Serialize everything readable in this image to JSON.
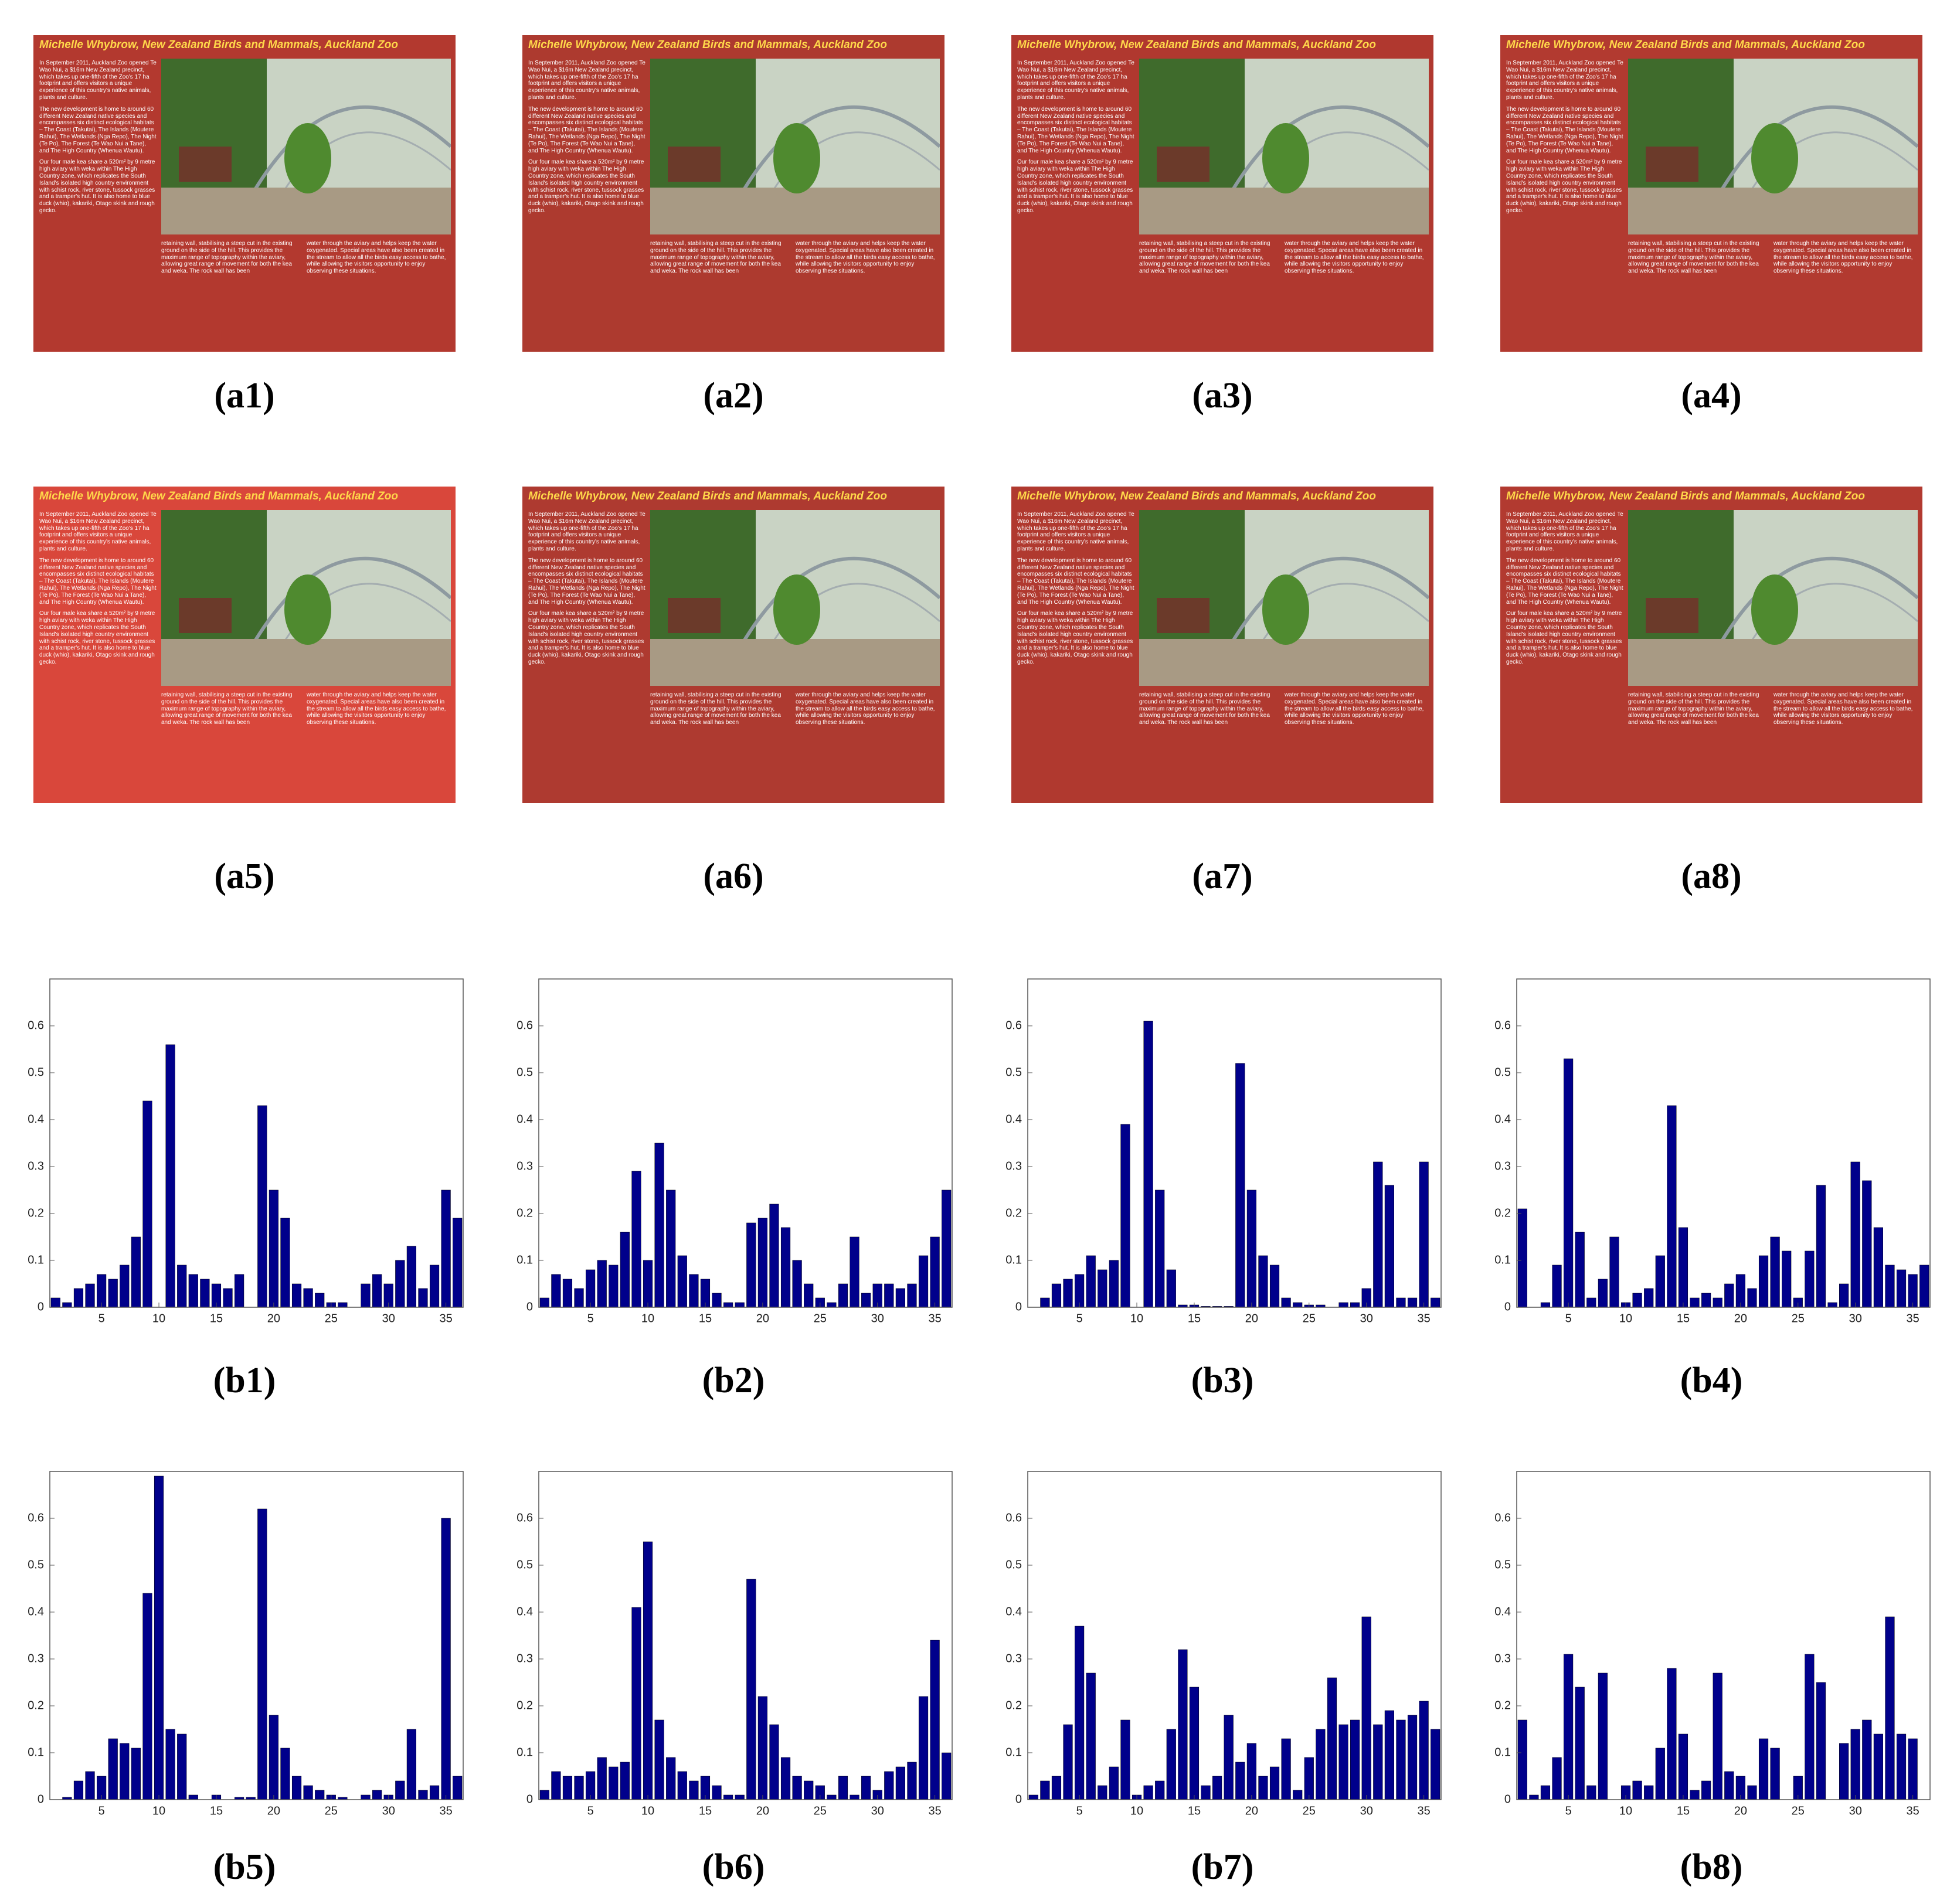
{
  "posters": {
    "title": "Michelle Whybrow, New Zealand Birds and Mammals, Auckland Zoo",
    "paragraphs": [
      "In September 2011, Auckland Zoo opened Te Wao Nui, a $16m New Zealand precinct, which takes up one-fifth of the Zoo's 17 ha footprint and offers visitors a unique experience of this country's native animals, plants and culture.",
      "The new development is home to around 60 different New Zealand native species and encompasses six distinct ecological habitats – The Coast (Takutai), The Islands (Moutere Rahui), The Wetlands (Nga Repo), The Night (Te Po), The Forest (Te Wao Nui a Tane), and The High Country (Whenua Wautu).",
      "Our four male kea share a 520m² by 9 metre high aviary with weka within The High Country zone, which replicates the South Island's isolated high country environment with schist rock, river stone, tussock grasses and a tramper's hut. It is also home to blue duck (whio), kakariki, Otago skink and rough gecko.",
      "retaining wall, stabilising a steep cut in the existing ground on the side of the hill. This provides the maximum range of topography within the aviary, allowing great range of movement for both the kea and weka. The rock wall has been",
      "water through the aviary and helps keep the water oxygenated. Special areas have also been created in the stream to allow all the birds easy access to bathe, while allowing the visitors opportunity to enjoy observing these situations."
    ],
    "panels": [
      {
        "caption": "(a1)",
        "color": "#b3392f"
      },
      {
        "caption": "(a2)",
        "color": "#ad3a2f"
      },
      {
        "caption": "(a3)",
        "color": "#b0382f"
      },
      {
        "caption": "(a4)",
        "color": "#b23a30"
      },
      {
        "caption": "(a5)",
        "color": "#d9473b"
      },
      {
        "caption": "(a6)",
        "color": "#ae3a30"
      },
      {
        "caption": "(a7)",
        "color": "#b0392f"
      },
      {
        "caption": "(a8)",
        "color": "#b23a30"
      }
    ]
  },
  "chart_data": [
    {
      "type": "bar",
      "caption": "(b1)",
      "color": "#00008b",
      "x": [
        1,
        2,
        3,
        4,
        5,
        6,
        7,
        8,
        9,
        10,
        11,
        12,
        13,
        14,
        15,
        16,
        17,
        18,
        19,
        20,
        21,
        22,
        23,
        24,
        25,
        26,
        27,
        28,
        29,
        30,
        31,
        32,
        33,
        34,
        35,
        36
      ],
      "values": [
        0.02,
        0.01,
        0.04,
        0.05,
        0.07,
        0.06,
        0.09,
        0.15,
        0.44,
        0,
        0.56,
        0.09,
        0.07,
        0.06,
        0.05,
        0.04,
        0.07,
        0,
        0.43,
        0.25,
        0.19,
        0.05,
        0.04,
        0.03,
        0.01,
        0.01,
        0,
        0.05,
        0.07,
        0.05,
        0.1,
        0.13,
        0.04,
        0.09,
        0.25,
        0.19
      ],
      "xlim": [
        0.5,
        36.5
      ],
      "ylim": [
        0,
        0.7
      ],
      "xticks": [
        5,
        10,
        15,
        20,
        25,
        30,
        35
      ],
      "yticks": [
        0,
        0.1,
        0.2,
        0.3,
        0.4,
        0.5,
        0.6
      ]
    },
    {
      "type": "bar",
      "caption": "(b2)",
      "color": "#00008b",
      "x": [
        1,
        2,
        3,
        4,
        5,
        6,
        7,
        8,
        9,
        10,
        11,
        12,
        13,
        14,
        15,
        16,
        17,
        18,
        19,
        20,
        21,
        22,
        23,
        24,
        25,
        26,
        27,
        28,
        29,
        30,
        31,
        32,
        33,
        34,
        35,
        36
      ],
      "values": [
        0.02,
        0.07,
        0.06,
        0.04,
        0.08,
        0.1,
        0.09,
        0.16,
        0.29,
        0.1,
        0.35,
        0.25,
        0.11,
        0.07,
        0.06,
        0.03,
        0.01,
        0.01,
        0.18,
        0.19,
        0.22,
        0.17,
        0.1,
        0.05,
        0.02,
        0.01,
        0.05,
        0.15,
        0.03,
        0.05,
        0.05,
        0.04,
        0.05,
        0.11,
        0.15,
        0.25
      ],
      "xlim": [
        0.5,
        36.5
      ],
      "ylim": [
        0,
        0.7
      ],
      "xticks": [
        5,
        10,
        15,
        20,
        25,
        30,
        35
      ],
      "yticks": [
        0,
        0.1,
        0.2,
        0.3,
        0.4,
        0.5,
        0.6
      ]
    },
    {
      "type": "bar",
      "caption": "(b3)",
      "color": "#00008b",
      "x": [
        1,
        2,
        3,
        4,
        5,
        6,
        7,
        8,
        9,
        10,
        11,
        12,
        13,
        14,
        15,
        16,
        17,
        18,
        19,
        20,
        21,
        22,
        23,
        24,
        25,
        26,
        27,
        28,
        29,
        30,
        31,
        32,
        33,
        34,
        35,
        36
      ],
      "values": [
        0,
        0.02,
        0.05,
        0.06,
        0.07,
        0.11,
        0.08,
        0.1,
        0.39,
        0,
        0.61,
        0.25,
        0.08,
        0.005,
        0.005,
        0.002,
        0.002,
        0.002,
        0.52,
        0.25,
        0.11,
        0.09,
        0.02,
        0.01,
        0.005,
        0.005,
        0,
        0.01,
        0.01,
        0.04,
        0.31,
        0.26,
        0.02,
        0.02,
        0.31,
        0.02
      ],
      "xlim": [
        0.5,
        36.5
      ],
      "ylim": [
        0,
        0.7
      ],
      "xticks": [
        5,
        10,
        15,
        20,
        25,
        30,
        35
      ],
      "yticks": [
        0,
        0.1,
        0.2,
        0.3,
        0.4,
        0.5,
        0.6
      ]
    },
    {
      "type": "bar",
      "caption": "(b4)",
      "color": "#00008b",
      "x": [
        1,
        2,
        3,
        4,
        5,
        6,
        7,
        8,
        9,
        10,
        11,
        12,
        13,
        14,
        15,
        16,
        17,
        18,
        19,
        20,
        21,
        22,
        23,
        24,
        25,
        26,
        27,
        28,
        29,
        30,
        31,
        32,
        33,
        34,
        35,
        36
      ],
      "values": [
        0.21,
        0,
        0.01,
        0.09,
        0.53,
        0.16,
        0.02,
        0.06,
        0.15,
        0.01,
        0.03,
        0.04,
        0.11,
        0.43,
        0.17,
        0.02,
        0.03,
        0.02,
        0.05,
        0.07,
        0.04,
        0.11,
        0.15,
        0.12,
        0.02,
        0.12,
        0.26,
        0.01,
        0.05,
        0.31,
        0.27,
        0.17,
        0.09,
        0.08,
        0.07,
        0.09
      ],
      "xlim": [
        0.5,
        36.5
      ],
      "ylim": [
        0,
        0.7
      ],
      "xticks": [
        5,
        10,
        15,
        20,
        25,
        30,
        35
      ],
      "yticks": [
        0,
        0.1,
        0.2,
        0.3,
        0.4,
        0.5,
        0.6
      ]
    },
    {
      "type": "bar",
      "caption": "(b5)",
      "color": "#00008b",
      "x": [
        1,
        2,
        3,
        4,
        5,
        6,
        7,
        8,
        9,
        10,
        11,
        12,
        13,
        14,
        15,
        16,
        17,
        18,
        19,
        20,
        21,
        22,
        23,
        24,
        25,
        26,
        27,
        28,
        29,
        30,
        31,
        32,
        33,
        34,
        35,
        36
      ],
      "values": [
        0,
        0.005,
        0.04,
        0.06,
        0.05,
        0.13,
        0.12,
        0.11,
        0.44,
        0.69,
        0.15,
        0.14,
        0.01,
        0,
        0.01,
        0,
        0.005,
        0.005,
        0.62,
        0.18,
        0.11,
        0.05,
        0.03,
        0.02,
        0.01,
        0.005,
        0,
        0.01,
        0.02,
        0.01,
        0.04,
        0.15,
        0.02,
        0.03,
        0.6,
        0.05
      ],
      "xlim": [
        0.5,
        36.5
      ],
      "ylim": [
        0,
        0.7
      ],
      "xticks": [
        5,
        10,
        15,
        20,
        25,
        30,
        35
      ],
      "yticks": [
        0,
        0.1,
        0.2,
        0.3,
        0.4,
        0.5,
        0.6
      ]
    },
    {
      "type": "bar",
      "caption": "(b6)",
      "color": "#00008b",
      "x": [
        1,
        2,
        3,
        4,
        5,
        6,
        7,
        8,
        9,
        10,
        11,
        12,
        13,
        14,
        15,
        16,
        17,
        18,
        19,
        20,
        21,
        22,
        23,
        24,
        25,
        26,
        27,
        28,
        29,
        30,
        31,
        32,
        33,
        34,
        35,
        36
      ],
      "values": [
        0.02,
        0.06,
        0.05,
        0.05,
        0.06,
        0.09,
        0.07,
        0.08,
        0.41,
        0.55,
        0.17,
        0.09,
        0.06,
        0.04,
        0.05,
        0.03,
        0.01,
        0.01,
        0.47,
        0.22,
        0.16,
        0.09,
        0.05,
        0.04,
        0.03,
        0.01,
        0.05,
        0.01,
        0.05,
        0.02,
        0.06,
        0.07,
        0.08,
        0.22,
        0.34,
        0.1
      ],
      "xlim": [
        0.5,
        36.5
      ],
      "ylim": [
        0,
        0.7
      ],
      "xticks": [
        5,
        10,
        15,
        20,
        25,
        30,
        35
      ],
      "yticks": [
        0,
        0.1,
        0.2,
        0.3,
        0.4,
        0.5,
        0.6
      ]
    },
    {
      "type": "bar",
      "caption": "(b7)",
      "color": "#00008b",
      "x": [
        1,
        2,
        3,
        4,
        5,
        6,
        7,
        8,
        9,
        10,
        11,
        12,
        13,
        14,
        15,
        16,
        17,
        18,
        19,
        20,
        21,
        22,
        23,
        24,
        25,
        26,
        27,
        28,
        29,
        30,
        31,
        32,
        33,
        34,
        35,
        36
      ],
      "values": [
        0.01,
        0.04,
        0.05,
        0.16,
        0.37,
        0.27,
        0.03,
        0.07,
        0.17,
        0.01,
        0.03,
        0.04,
        0.15,
        0.32,
        0.24,
        0.03,
        0.05,
        0.18,
        0.08,
        0.12,
        0.05,
        0.07,
        0.13,
        0.02,
        0.09,
        0.15,
        0.26,
        0.16,
        0.17,
        0.39,
        0.16,
        0.19,
        0.17,
        0.18,
        0.21,
        0.15
      ],
      "xlim": [
        0.5,
        36.5
      ],
      "ylim": [
        0,
        0.7
      ],
      "xticks": [
        5,
        10,
        15,
        20,
        25,
        30,
        35
      ],
      "yticks": [
        0,
        0.1,
        0.2,
        0.3,
        0.4,
        0.5,
        0.6
      ]
    },
    {
      "type": "bar",
      "caption": "(b8)",
      "color": "#00008b",
      "x": [
        1,
        2,
        3,
        4,
        5,
        6,
        7,
        8,
        9,
        10,
        11,
        12,
        13,
        14,
        15,
        16,
        17,
        18,
        19,
        20,
        21,
        22,
        23,
        24,
        25,
        26,
        27,
        28,
        29,
        30,
        31,
        32,
        33,
        34,
        35,
        36
      ],
      "values": [
        0.17,
        0.01,
        0.03,
        0.09,
        0.31,
        0.24,
        0.03,
        0.27,
        0,
        0.03,
        0.04,
        0.03,
        0.11,
        0.28,
        0.14,
        0.02,
        0.04,
        0.27,
        0.06,
        0.05,
        0.03,
        0.13,
        0.11,
        0,
        0.05,
        0.31,
        0.25,
        0,
        0.12,
        0.15,
        0.17,
        0.14,
        0.39,
        0.14,
        0.13,
        0
      ],
      "xlim": [
        0.5,
        36.5
      ],
      "ylim": [
        0,
        0.7
      ],
      "xticks": [
        5,
        10,
        15,
        20,
        25,
        30,
        35
      ],
      "yticks": [
        0,
        0.1,
        0.2,
        0.3,
        0.4,
        0.5,
        0.6
      ]
    }
  ]
}
